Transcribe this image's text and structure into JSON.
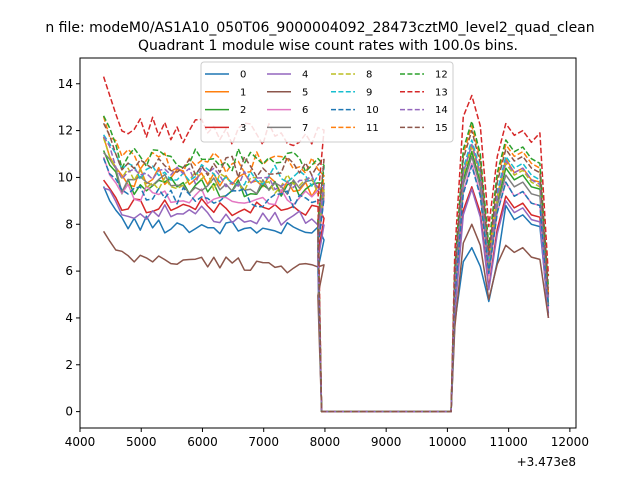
{
  "chart_data": {
    "type": "line",
    "suptitle": "n file: modeM0/AS1A10_050T06_9000004092_28473cztM0_level2_quad_clean",
    "title": "Quadrant 1 module wise count rates with 100.0s bins.",
    "xlabel": "",
    "ylabel": "",
    "x_offset_label": "+3.473e8",
    "xlim": [
      4000,
      12100
    ],
    "ylim": [
      -0.7,
      15.1
    ],
    "x_ticks": [
      4000,
      5000,
      6000,
      7000,
      8000,
      9000,
      10000,
      11000,
      12000
    ],
    "x_tick_labels": [
      "4000",
      "5000",
      "6000",
      "7000",
      "8000",
      "9000",
      "10000",
      "11000",
      "12000"
    ],
    "y_ticks": [
      0,
      2,
      4,
      6,
      8,
      10,
      12,
      14
    ],
    "y_tick_labels": [
      "0",
      "2",
      "4",
      "6",
      "8",
      "10",
      "12",
      "14"
    ],
    "grid": false,
    "legend": {
      "placement": "top-center",
      "columns": 4
    },
    "series": [
      {
        "name": "0",
        "color": "#1f77b4",
        "dash": "solid",
        "base": 8.1,
        "slope": -0.45,
        "amp": 0.35,
        "early": 9.6,
        "post": [
          3.8,
          6.4,
          7.0,
          6.2,
          4.7,
          6.4,
          8.8,
          8.2,
          8.4,
          8.0,
          7.9,
          4.2
        ]
      },
      {
        "name": "1",
        "color": "#ff7f0e",
        "dash": "solid",
        "base": 10.1,
        "slope": -0.5,
        "amp": 0.45,
        "early": 11.6,
        "post": [
          5.6,
          10.2,
          11.4,
          10.2,
          6.6,
          9.2,
          10.8,
          10.2,
          10.4,
          9.9,
          9.8,
          4.9
        ]
      },
      {
        "name": "2",
        "color": "#2ca02c",
        "dash": "solid",
        "base": 9.7,
        "slope": -0.3,
        "amp": 0.4,
        "early": 11.2,
        "post": [
          5.3,
          9.9,
          11.1,
          9.8,
          6.1,
          8.9,
          10.4,
          9.9,
          10.1,
          9.6,
          9.5,
          4.6
        ]
      },
      {
        "name": "3",
        "color": "#d62728",
        "dash": "solid",
        "base": 8.9,
        "slope": -0.35,
        "amp": 0.35,
        "early": 9.8,
        "post": [
          4.3,
          8.6,
          9.6,
          8.5,
          5.3,
          7.8,
          9.2,
          8.7,
          8.9,
          8.4,
          8.3,
          4.0
        ]
      },
      {
        "name": "4",
        "color": "#9467bd",
        "dash": "solid",
        "base": 8.6,
        "slope": -0.4,
        "amp": 0.35,
        "early": 9.7,
        "post": [
          4.2,
          8.4,
          9.5,
          8.3,
          5.2,
          7.6,
          9.0,
          8.5,
          8.7,
          8.2,
          8.1,
          4.0
        ]
      },
      {
        "name": "5",
        "color": "#8c564b",
        "dash": "solid",
        "base": 6.6,
        "slope": -0.45,
        "amp": 0.3,
        "early": 7.6,
        "post": [
          3.6,
          7.2,
          8.0,
          7.1,
          4.8,
          6.3,
          7.1,
          6.8,
          7.0,
          6.6,
          6.5,
          4.0
        ]
      },
      {
        "name": "6",
        "color": "#e377c2",
        "dash": "solid",
        "base": 9.4,
        "slope": -0.35,
        "amp": 0.4,
        "early": 10.7,
        "post": [
          4.9,
          9.4,
          10.6,
          9.3,
          5.8,
          8.5,
          9.8,
          9.2,
          9.4,
          8.9,
          8.8,
          4.4
        ]
      },
      {
        "name": "7",
        "color": "#7f7f7f",
        "dash": "solid",
        "base": 9.8,
        "slope": -0.25,
        "amp": 0.4,
        "early": 11.2,
        "post": [
          5.1,
          9.7,
          10.9,
          9.6,
          6.0,
          8.8,
          10.1,
          9.6,
          9.8,
          9.3,
          9.2,
          4.5
        ]
      },
      {
        "name": "8",
        "color": "#bcbd22",
        "dash": "dash",
        "base": 10.0,
        "slope": -0.35,
        "amp": 0.45,
        "early": 11.5,
        "post": [
          5.4,
          10.1,
          11.3,
          10.0,
          6.3,
          9.1,
          10.6,
          10.1,
          10.3,
          9.8,
          9.6,
          4.8
        ]
      },
      {
        "name": "9",
        "color": "#17becf",
        "dash": "dash",
        "base": 10.3,
        "slope": -0.3,
        "amp": 0.45,
        "early": 12.0,
        "post": [
          5.6,
          10.4,
          11.6,
          10.3,
          6.5,
          9.4,
          10.9,
          10.4,
          10.6,
          10.1,
          9.9,
          4.9
        ]
      },
      {
        "name": "10",
        "color": "#1f77b4",
        "dash": "dash",
        "base": 9.3,
        "slope": -0.25,
        "amp": 0.4,
        "early": 10.8,
        "post": [
          4.9,
          9.3,
          10.5,
          9.2,
          5.9,
          8.5,
          9.8,
          9.2,
          9.4,
          8.9,
          8.8,
          4.5
        ]
      },
      {
        "name": "11",
        "color": "#ff7f0e",
        "dash": "dash",
        "base": 10.8,
        "slope": -0.3,
        "amp": 0.5,
        "early": 12.4,
        "post": [
          6.0,
          11.0,
          12.2,
          10.8,
          6.9,
          10.0,
          11.4,
          10.9,
          11.1,
          10.6,
          10.4,
          5.1
        ]
      },
      {
        "name": "12",
        "color": "#2ca02c",
        "dash": "dash",
        "base": 10.9,
        "slope": -0.25,
        "amp": 0.5,
        "early": 12.6,
        "post": [
          6.1,
          11.2,
          12.4,
          11.0,
          7.1,
          10.2,
          11.6,
          11.1,
          11.3,
          10.8,
          10.6,
          5.3
        ]
      },
      {
        "name": "13",
        "color": "#d62728",
        "dash": "dash",
        "base": 12.1,
        "slope": -0.3,
        "amp": 0.55,
        "early": 14.2,
        "post": [
          6.8,
          12.6,
          13.5,
          12.2,
          7.9,
          10.9,
          12.3,
          11.8,
          12.0,
          11.5,
          11.9,
          5.8
        ]
      },
      {
        "name": "14",
        "color": "#9467bd",
        "dash": "dash",
        "base": 10.1,
        "slope": -0.3,
        "amp": 0.45,
        "early": 11.6,
        "post": [
          5.5,
          10.2,
          11.4,
          10.1,
          6.4,
          9.2,
          10.7,
          10.2,
          10.4,
          9.9,
          9.7,
          4.8
        ]
      },
      {
        "name": "15",
        "color": "#8c564b",
        "dash": "dash",
        "base": 10.6,
        "slope": -0.25,
        "amp": 0.5,
        "early": 12.2,
        "post": [
          5.8,
          10.8,
          12.0,
          10.6,
          6.7,
          9.8,
          11.2,
          10.7,
          10.9,
          10.4,
          10.2,
          5.0
        ]
      }
    ]
  }
}
